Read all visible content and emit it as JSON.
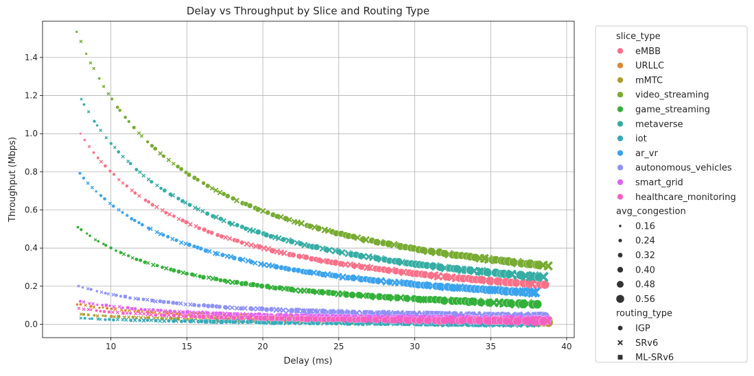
{
  "chart_data": {
    "type": "scatter",
    "title": "Delay vs Throughput by Slice and Routing Type",
    "xlabel": "Delay (ms)",
    "ylabel": "Throughput (Mbps)",
    "xlim": [
      5.5,
      40.5
    ],
    "ylim": [
      -0.07,
      1.59
    ],
    "xticks": [
      10,
      15,
      20,
      25,
      30,
      35,
      40
    ],
    "yticks": [
      0.0,
      0.2,
      0.4,
      0.6,
      0.8,
      1.0,
      1.2,
      1.4
    ],
    "grid": true,
    "legend_position": "outside-right",
    "legend": {
      "hue_title": "slice_type",
      "size_title": "avg_congestion",
      "style_title": "routing_type",
      "size_values": [
        "0.16",
        "0.24",
        "0.32",
        "0.40",
        "0.48",
        "0.56"
      ],
      "routing_types": [
        {
          "name": "IGP",
          "marker": "circle"
        },
        {
          "name": "SRv6",
          "marker": "x"
        },
        {
          "name": "ML-SRv6",
          "marker": "square"
        }
      ]
    },
    "series": [
      {
        "name": "eMBB",
        "color": "#f77189",
        "k": 8.0,
        "x_range": [
          8.0,
          38.6
        ]
      },
      {
        "name": "URLLC",
        "color": "#dc8932",
        "k": 0.82,
        "x_range": [
          7.8,
          38.8
        ]
      },
      {
        "name": "mMTC",
        "color": "#ae9d31",
        "k": 0.42,
        "x_range": [
          8.0,
          38.8
        ]
      },
      {
        "name": "video_streaming",
        "color": "#77ab31",
        "k": 11.9,
        "x_range": [
          7.8,
          38.8
        ]
      },
      {
        "name": "game_streaming",
        "color": "#33b039",
        "k": 4.0,
        "x_range": [
          7.8,
          38.0
        ]
      },
      {
        "name": "metaverse",
        "color": "#36ada4",
        "k": 9.5,
        "x_range": [
          8.0,
          38.4
        ]
      },
      {
        "name": "iot",
        "color": "#38aaba",
        "k": 0.25,
        "x_range": [
          8.0,
          38.0
        ]
      },
      {
        "name": "ar_vr",
        "color": "#3ba3ec",
        "k": 6.3,
        "x_range": [
          8.0,
          38.0
        ]
      },
      {
        "name": "autonomous_vehicles",
        "color": "#8e92f4",
        "k": 1.58,
        "x_range": [
          7.9,
          38.6
        ]
      },
      {
        "name": "smart_grid",
        "color": "#e064f1",
        "k": 0.95,
        "x_range": [
          8.0,
          38.6
        ]
      },
      {
        "name": "healthcare_monitoring",
        "color": "#f560bf",
        "k": 0.65,
        "x_range": [
          7.9,
          38.8
        ]
      }
    ]
  }
}
